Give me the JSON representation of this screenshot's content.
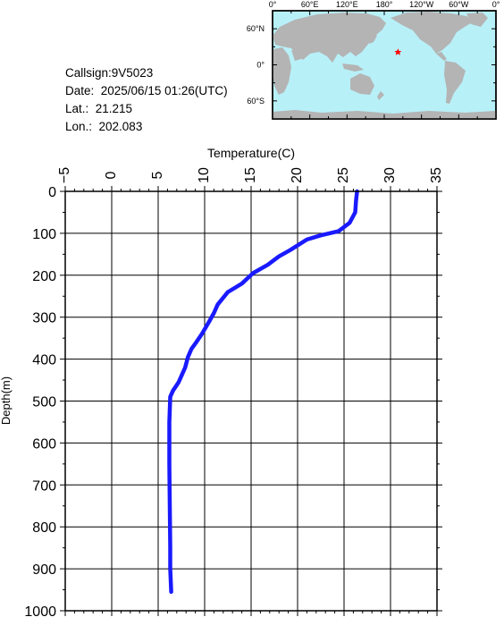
{
  "info": {
    "callsign": "Callsign:9V5023",
    "date": "Date:  2025/06/15 01:26(UTC)",
    "lat": "Lat.:  21.215",
    "lon": "Lon.:  202.083"
  },
  "map": {
    "top_labels": [
      "0°",
      "60°E",
      "120°E",
      "180°",
      "120°W",
      "60°W",
      "0°"
    ],
    "side_labels": [
      "60°N",
      "0°",
      "60°S"
    ],
    "ocean_color": "#b8f0f8",
    "land_color": "#b4b4b4",
    "marker_color": "#ff0000",
    "marker_lon": 202.083,
    "marker_lat": 21.215
  },
  "chart_data": {
    "type": "line",
    "xlabel": "Temperature(C)",
    "ylabel": "Depth(m)",
    "xlim": [
      -5,
      35
    ],
    "ylim": [
      0,
      1000
    ],
    "x_ticks": [
      -5,
      0,
      5,
      10,
      15,
      20,
      25,
      30,
      35
    ],
    "y_ticks": [
      0,
      100,
      200,
      300,
      400,
      500,
      600,
      700,
      800,
      900,
      1000
    ],
    "line_color": "#1a1aff",
    "profile": {
      "temperature": [
        26.4,
        26.3,
        26.2,
        25.6,
        24.4,
        22.5,
        21.0,
        19.2,
        18.0,
        16.8,
        15.2,
        14.0,
        12.5,
        11.4,
        11.0,
        10.5,
        9.7,
        9.1,
        8.6,
        8.2,
        7.9,
        7.5,
        7.2,
        6.9,
        6.6,
        6.3,
        6.2,
        6.2,
        6.25,
        6.3,
        6.3,
        6.4
      ],
      "depth": [
        0,
        20,
        50,
        75,
        95,
        105,
        115,
        140,
        155,
        175,
        195,
        220,
        240,
        270,
        290,
        310,
        340,
        360,
        375,
        395,
        420,
        440,
        455,
        465,
        475,
        490,
        550,
        650,
        750,
        850,
        900,
        955
      ]
    }
  }
}
